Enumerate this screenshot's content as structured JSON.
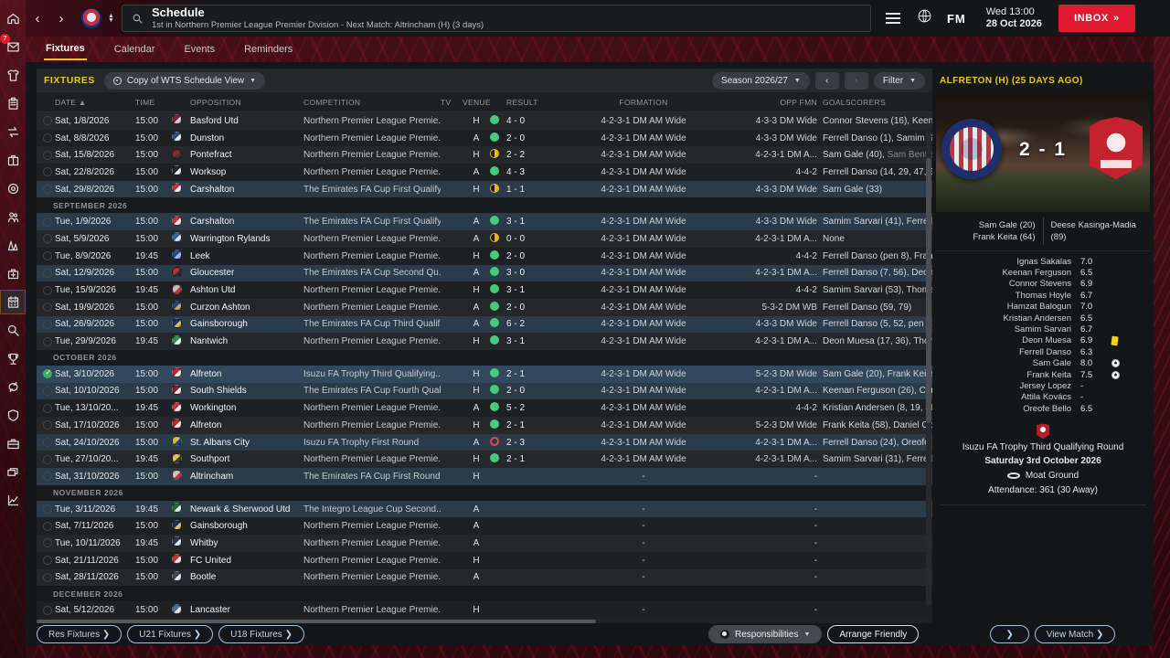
{
  "chrome": {
    "back": "‹",
    "forward": "›",
    "title": "Schedule",
    "subtitle": "1st in Northern Premier League Premier Division - Next Match: Altrincham (H) (3 days)",
    "clock_line1": "Wed 13:00",
    "clock_line2": "28 Oct 2026",
    "fm_label": "FM",
    "inbox_label": "INBOX",
    "inbox_chevrons": "»",
    "inbox_badge": "7"
  },
  "tabs": [
    {
      "label": "Fixtures",
      "active": true
    },
    {
      "label": "Calendar",
      "active": false
    },
    {
      "label": "Events",
      "active": false
    },
    {
      "label": "Reminders",
      "active": false
    }
  ],
  "rail": {
    "items": [
      {
        "icon": "home",
        "name": "home-icon"
      },
      {
        "icon": "mail",
        "name": "inbox-icon",
        "badge": "7"
      },
      {
        "icon": "shirt",
        "name": "squad-icon"
      },
      {
        "icon": "clipboard",
        "name": "tactics-icon"
      },
      {
        "icon": "swap",
        "name": "transfers-icon"
      },
      {
        "icon": "case2",
        "name": "dynamics-icon"
      },
      {
        "icon": "ball",
        "name": "scouting-icon"
      },
      {
        "icon": "people",
        "name": "staff-icon"
      },
      {
        "icon": "cones",
        "name": "training-icon"
      },
      {
        "icon": "medical",
        "name": "medical-icon"
      },
      {
        "icon": "calendar",
        "name": "schedule-icon",
        "active": true
      },
      {
        "icon": "search",
        "name": "search-icon"
      },
      {
        "icon": "trophy",
        "name": "competitions-icon"
      },
      {
        "icon": "sync",
        "name": "transfer-centre-icon"
      },
      {
        "icon": "shield",
        "name": "club-info-icon"
      },
      {
        "icon": "briefcase",
        "name": "finances-icon"
      },
      {
        "icon": "tickets",
        "name": "season-tickets-icon"
      },
      {
        "icon": "chart",
        "name": "analysis-icon"
      }
    ]
  },
  "toolbar": {
    "section_label": "FIXTURES",
    "view_selector": "Copy of WTS Schedule View",
    "season_selector": "Season 2026/27",
    "prev": "‹",
    "next": "›",
    "filter_label": "Filter"
  },
  "table": {
    "columns": {
      "date": "DATE",
      "sort": "▲",
      "time": "TIME",
      "opposition": "OPPOSITION",
      "competition": "COMPETITION",
      "tv": "TV",
      "venue": "VENUE",
      "result": "RESULT",
      "formation": "FORMATION",
      "opp_fmn": "OPP FMN",
      "goalscorers": "GOALSCORERS"
    },
    "rows": [
      {
        "type": "fix",
        "d": "Sat, 1/8/2026",
        "t": "15:00",
        "team": "Basford Utd",
        "bc": [
          "#7c2531",
          "#cfd3d6"
        ],
        "comp": "Northern Premier League Premie...",
        "v": "H",
        "res": "win",
        "score": "4 - 0",
        "fmn": "4-2-3-1 DM AM Wide",
        "opp": "4-3-3 DM Wide",
        "gs": "Connor Stevens (16), Keena"
      },
      {
        "type": "fix",
        "d": "Sat, 8/8/2026",
        "t": "15:00",
        "team": "Dunston",
        "bc": [
          "#2b4f8e",
          "#e8ecf2"
        ],
        "comp": "Northern Premier League Premie...",
        "v": "A",
        "res": "win",
        "score": "2 - 0",
        "fmn": "4-2-3-1 DM AM Wide",
        "opp": "4-3-3 DM Wide",
        "gs": "Ferrell Danso (1), Samim San"
      },
      {
        "type": "fix",
        "d": "Sat, 15/8/2026",
        "t": "15:00",
        "team": "Pontefract",
        "bc": [
          "#8a2a2e",
          "#3a3a3e"
        ],
        "comp": "Northern Premier League Premie...",
        "v": "H",
        "res": "draw",
        "score": "2 - 2",
        "fmn": "4-2-3-1 DM AM Wide",
        "opp": "4-2-3-1 DM A...",
        "gs": "Sam Gale (40), ",
        "gs2": "Sam Bentley"
      },
      {
        "type": "fix",
        "d": "Sat, 22/8/2026",
        "t": "15:00",
        "team": "Worksop",
        "bc": [
          "#26282c",
          "#e8e8e8"
        ],
        "comp": "Northern Premier League Premie...",
        "v": "A",
        "res": "win",
        "score": "4 - 3",
        "fmn": "4-2-3-1 DM AM Wide",
        "opp": "4-4-2",
        "gs": "Ferrell Danso (14, 29, 47, 61)"
      },
      {
        "type": "fix",
        "d": "Sat, 29/8/2026",
        "t": "15:00",
        "team": "Carshalton",
        "bc": [
          "#c23440",
          "#f0f0f0"
        ],
        "comp": "The Emirates FA Cup First Qualify...",
        "v": "H",
        "res": "draw",
        "score": "1 - 1",
        "fmn": "4-2-3-1 DM AM Wide",
        "opp": "4-3-3 DM Wide",
        "gs": "Sam Gale (33)",
        "cup": true
      },
      {
        "type": "month",
        "label": "SEPTEMBER 2026"
      },
      {
        "type": "fix",
        "d": "Tue, 1/9/2026",
        "t": "15:00",
        "team": "Carshalton",
        "bc": [
          "#c23440",
          "#f0f0f0"
        ],
        "comp": "The Emirates FA Cup First Qualify...",
        "v": "A",
        "res": "win",
        "score": "3 - 1",
        "fmn": "4-2-3-1 DM AM Wide",
        "opp": "4-3-3 DM Wide",
        "gs": "Samim Sarvari (41), Ferrell Da",
        "cup": true
      },
      {
        "type": "fix",
        "d": "Sat, 5/9/2026",
        "t": "15:00",
        "team": "Warrington Rylands",
        "bc": [
          "#3c62a6",
          "#d6e4f5"
        ],
        "comp": "Northern Premier League Premie...",
        "v": "A",
        "res": "draw",
        "score": "0 - 0",
        "fmn": "4-2-3-1 DM AM Wide",
        "opp": "4-2-3-1 DM A...",
        "gs": "None"
      },
      {
        "type": "fix",
        "d": "Tue, 8/9/2026",
        "t": "19:45",
        "team": "Leek",
        "bc": [
          "#2a4796",
          "#9db7e8"
        ],
        "comp": "Northern Premier League Premie...",
        "v": "H",
        "res": "win",
        "score": "2 - 0",
        "fmn": "4-2-3-1 DM AM Wide",
        "opp": "4-4-2",
        "gs": "Ferrell Danso (pen 8), Frank"
      },
      {
        "type": "fix",
        "d": "Sat, 12/9/2026",
        "t": "15:00",
        "team": "Gloucester",
        "bc": [
          "#b23236",
          "#2c2c30"
        ],
        "comp": "The Emirates FA Cup Second Qu...",
        "v": "A",
        "res": "win",
        "score": "3 - 0",
        "fmn": "4-2-3-1 DM AM Wide",
        "opp": "4-2-3-1 DM A...",
        "gs": "Ferrell Danso (7, 56), Deon M",
        "cup": true
      },
      {
        "type": "fix",
        "d": "Tue, 15/9/2026",
        "t": "19:45",
        "team": "Ashton Utd",
        "bc": [
          "#c0bfbf",
          "#c23440"
        ],
        "comp": "Northern Premier League Premie...",
        "v": "H",
        "res": "win",
        "score": "3 - 1",
        "fmn": "4-2-3-1 DM AM Wide",
        "opp": "4-4-2",
        "gs": "Samim Sarvari (53), Thomas"
      },
      {
        "type": "fix",
        "d": "Sat, 19/9/2026",
        "t": "15:00",
        "team": "Curzon Ashton",
        "bc": [
          "#21409a",
          "#d4af37"
        ],
        "comp": "Northern Premier League Premie...",
        "v": "A",
        "res": "win",
        "score": "2 - 0",
        "fmn": "4-2-3-1 DM AM Wide",
        "opp": "5-3-2 DM WB",
        "gs": "Ferrell Danso (59, 79)"
      },
      {
        "type": "fix",
        "d": "Sat, 26/9/2026",
        "t": "15:00",
        "team": "Gainsborough",
        "bc": [
          "#17336b",
          "#e4c54b"
        ],
        "comp": "The Emirates FA Cup Third Qualif...",
        "v": "A",
        "res": "win",
        "score": "6 - 2",
        "fmn": "4-2-3-1 DM AM Wide",
        "opp": "4-3-3 DM Wide",
        "gs": "Ferrell Danso (5, 52, pen 61),",
        "cup": true
      },
      {
        "type": "fix",
        "d": "Tue, 29/9/2026",
        "t": "19:45",
        "team": "Nantwich",
        "bc": [
          "#2f9158",
          "#f0f0f0"
        ],
        "comp": "Northern Premier League Premie...",
        "v": "H",
        "res": "win",
        "score": "3 - 1",
        "fmn": "4-2-3-1 DM AM Wide",
        "opp": "4-2-3-1 DM A...",
        "gs": "Deon Muesa (17, 36), Thoma"
      },
      {
        "type": "month",
        "label": "OCTOBER 2026"
      },
      {
        "type": "fix",
        "d": "Sat, 3/10/2026",
        "t": "15:00",
        "team": "Alfreton",
        "bc": [
          "#c5222f",
          "#f0f0f0"
        ],
        "comp": "Isuzu FA Trophy Third Qualifying...",
        "v": "H",
        "res": "win",
        "score": "2 - 1",
        "fmn": "4-2-3-1 DM AM Wide",
        "opp": "5-2-3 DM Wide",
        "gs": "Sam Gale (20), Frank Keita (",
        "cup": true,
        "sel": true
      },
      {
        "type": "fix",
        "d": "Sat, 10/10/2026",
        "t": "15:00",
        "team": "South Shields",
        "bc": [
          "#7e2130",
          "#f0f0f0"
        ],
        "comp": "The Emirates FA Cup Fourth Qual...",
        "v": "H",
        "res": "win",
        "score": "2 - 0",
        "fmn": "4-2-3-1 DM AM Wide",
        "opp": "4-2-3-1 DM A...",
        "gs": "Keenan Ferguson (26), Conn",
        "cup": true
      },
      {
        "type": "fix",
        "d": "Tue, 13/10/20...",
        "t": "19:45",
        "team": "Workington",
        "bc": [
          "#c23a3e",
          "#f0f0f0"
        ],
        "comp": "Northern Premier League Premie...",
        "v": "A",
        "res": "win",
        "score": "5 - 2",
        "fmn": "4-2-3-1 DM AM Wide",
        "opp": "4-4-2",
        "gs": "Kristian Andersen (8, 19, 36)"
      },
      {
        "type": "fix",
        "d": "Sat, 17/10/2026",
        "t": "15:00",
        "team": "Alfreton",
        "bc": [
          "#c5222f",
          "#f0f0f0"
        ],
        "comp": "Northern Premier League Premie...",
        "v": "H",
        "res": "win",
        "score": "2 - 1",
        "fmn": "4-2-3-1 DM AM Wide",
        "opp": "5-2-3 DM Wide",
        "gs": "Frank Keita (58), Daniel Obo"
      },
      {
        "type": "fix",
        "d": "Sat, 24/10/2026",
        "t": "15:00",
        "team": "St. Albans City",
        "bc": [
          "#d8b93e",
          "#21409a"
        ],
        "comp": "Isuzu FA Trophy First Round",
        "v": "A",
        "res": "loss",
        "score": "2 - 3",
        "fmn": "4-2-3-1 DM AM Wide",
        "opp": "4-2-3-1 DM A...",
        "gs": "Ferrell Danso (24), Oreofe B",
        "cup": true
      },
      {
        "type": "fix",
        "d": "Tue, 27/10/20...",
        "t": "19:45",
        "team": "Southport",
        "bc": [
          "#d9c54d",
          "#3a3a3e"
        ],
        "comp": "Northern Premier League Premie...",
        "v": "H",
        "res": "win",
        "score": "2 - 1",
        "fmn": "4-2-3-1 DM AM Wide",
        "opp": "4-2-3-1 DM A...",
        "gs": "Samim Sarvari (31), Ferrell Da"
      },
      {
        "type": "fix",
        "d": "Sat, 31/10/2026",
        "t": "15:00",
        "team": "Altrincham",
        "bc": [
          "#c8c8c8",
          "#c23440"
        ],
        "comp": "The Emirates FA Cup First Round",
        "v": "H",
        "res": null,
        "score": "",
        "fmn": "-",
        "opp": "-",
        "gs": "",
        "cup": true
      },
      {
        "type": "month",
        "label": "NOVEMBER 2026"
      },
      {
        "type": "fix",
        "d": "Tue, 3/11/2026",
        "t": "19:45",
        "team": "Newark & Sherwood Utd",
        "bc": [
          "#1f6b3a",
          "#e8e8e8"
        ],
        "comp": "The Integro League Cup Second...",
        "v": "A",
        "res": null,
        "score": "",
        "fmn": "-",
        "opp": "-",
        "gs": "",
        "cup": true
      },
      {
        "type": "fix",
        "d": "Sat, 7/11/2026",
        "t": "15:00",
        "team": "Gainsborough",
        "bc": [
          "#17336b",
          "#e4c54b"
        ],
        "comp": "Northern Premier League Premie...",
        "v": "A",
        "res": null,
        "score": "",
        "fmn": "-",
        "opp": "-",
        "gs": ""
      },
      {
        "type": "fix",
        "d": "Tue, 10/11/2026",
        "t": "19:45",
        "team": "Whitby",
        "bc": [
          "#20375c",
          "#e8e8e8"
        ],
        "comp": "Northern Premier League Premie...",
        "v": "A",
        "res": null,
        "score": "",
        "fmn": "-",
        "opp": "-",
        "gs": ""
      },
      {
        "type": "fix",
        "d": "Sat, 21/11/2026",
        "t": "15:00",
        "team": "FC United",
        "bc": [
          "#c23440",
          "#f0f0f0"
        ],
        "comp": "Northern Premier League Premie...",
        "v": "H",
        "res": null,
        "score": "",
        "fmn": "-",
        "opp": "-",
        "gs": ""
      },
      {
        "type": "fix",
        "d": "Sat, 28/11/2026",
        "t": "15:00",
        "team": "Bootle",
        "bc": [
          "#3c4c5c",
          "#e8e8e8"
        ],
        "comp": "Northern Premier League Premie...",
        "v": "A",
        "res": null,
        "score": "",
        "fmn": "-",
        "opp": "-",
        "gs": ""
      },
      {
        "type": "month",
        "label": "DECEMBER 2026"
      },
      {
        "type": "fix",
        "d": "Sat, 5/12/2026",
        "t": "15:00",
        "team": "Lancaster",
        "bc": [
          "#4f6f93",
          "#e8e8e8"
        ],
        "comp": "Northern Premier League Premie...",
        "v": "H",
        "res": null,
        "score": "",
        "fmn": "-",
        "opp": "-",
        "gs": ""
      }
    ]
  },
  "match_panel": {
    "header": "ALFRETON (H) (25 DAYS AGO)",
    "score": "2 - 1",
    "home_scorers": [
      "Sam Gale (20)",
      "Frank Keita (64)"
    ],
    "away_scorers": [
      "Deese Kasinga-Madia (89)"
    ],
    "ratings": [
      {
        "name": "Ignas Sakalas",
        "rating": "7.0"
      },
      {
        "name": "Keenan Ferguson",
        "rating": "6.5"
      },
      {
        "name": "Connor Stevens",
        "rating": "6.9"
      },
      {
        "name": "Thomas Hoyle",
        "rating": "6.7"
      },
      {
        "name": "Hamzat Balogun",
        "rating": "7.0"
      },
      {
        "name": "Kristian Andersen",
        "rating": "6.5"
      },
      {
        "name": "Samim Sarvari",
        "rating": "6.7"
      },
      {
        "name": "Deon Muesa",
        "rating": "6.9",
        "icon": "yellow-card"
      },
      {
        "name": "Ferrell Danso",
        "rating": "6.3"
      },
      {
        "name": "Sam Gale",
        "rating": "8.0",
        "icon": "goal"
      },
      {
        "name": "Frank Keita",
        "rating": "7.5",
        "icon": "goal"
      },
      {
        "name": "Jersey Lopez",
        "rating": "-"
      },
      {
        "name": "Attila Kovács",
        "rating": "-"
      },
      {
        "name": "Oreofe Bello",
        "rating": "6.5"
      }
    ],
    "competition": "Isuzu FA Trophy Third Qualifying Round",
    "date": "Saturday 3rd October 2026",
    "venue": "Moat Ground",
    "attendance": "Attendance: 361 (30 Away)"
  },
  "footer": {
    "left_buttons": [
      "Res Fixtures ❯",
      "U21 Fixtures ❯",
      "U18 Fixtures ❯"
    ],
    "responsibilities": "Responsibilities",
    "arrange_friendly": "Arrange Friendly",
    "next_arrow": "❯",
    "view_match": "View Match ❯"
  },
  "colors": {
    "accent_yellow": "#f0c512",
    "win_green": "#49c97a",
    "draw_yellow": "#e8b616",
    "loss_red": "#e14b5a",
    "inbox_red": "#e01b31",
    "cup_row": "#2b3b4a"
  }
}
